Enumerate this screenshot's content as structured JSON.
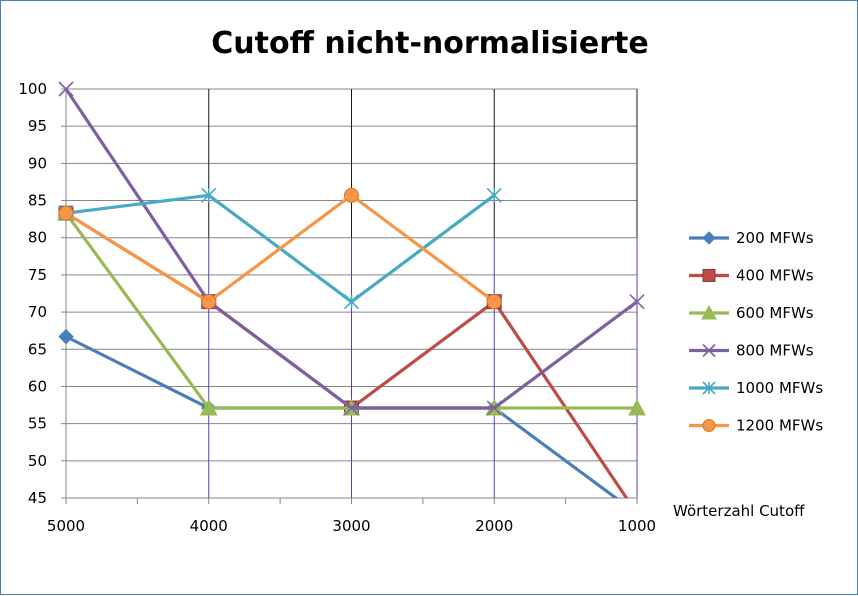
{
  "chart_data": {
    "type": "line",
    "title": "Cutoff nicht-normalisierte",
    "xlabel": "Wörterzahl Cutoff",
    "ylabel": "",
    "x": [
      5000,
      4000,
      3000,
      2000,
      1000
    ],
    "x_tick_labels": [
      "5000",
      "4000",
      "3000",
      "2000",
      "1000"
    ],
    "ylim": [
      45,
      100
    ],
    "y_ticks": [
      45,
      50,
      55,
      60,
      65,
      70,
      75,
      80,
      85,
      90,
      95,
      100
    ],
    "grid": true,
    "legend_position": "right",
    "series": [
      {
        "name": "200 MFWs",
        "color": "#4a7ebb",
        "marker": "diamond",
        "values": [
          66.7,
          57.1,
          57.1,
          57.1,
          42.9
        ]
      },
      {
        "name": "400 MFWs",
        "color": "#be4b48",
        "marker": "square",
        "values": [
          83.3,
          71.4,
          57.1,
          71.4,
          42.9
        ]
      },
      {
        "name": "600 MFWs",
        "color": "#98b954",
        "marker": "triangle",
        "values": [
          83.3,
          57.1,
          57.1,
          57.1,
          57.1
        ]
      },
      {
        "name": "800 MFWs",
        "color": "#7d60a0",
        "marker": "x",
        "values": [
          100,
          71.4,
          57.1,
          57.1,
          71.4
        ]
      },
      {
        "name": "1000 MFWs",
        "color": "#46aac5",
        "marker": "star",
        "values": [
          83.3,
          85.7,
          71.4,
          85.7,
          null
        ]
      },
      {
        "name": "1200 MFWs",
        "color": "#f79646",
        "marker": "circle",
        "values": [
          83.3,
          71.4,
          85.7,
          71.4,
          null
        ]
      }
    ]
  }
}
